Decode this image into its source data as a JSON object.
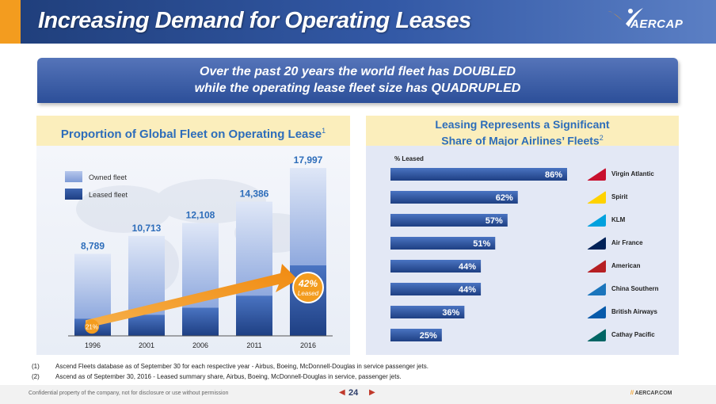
{
  "header": {
    "title": "Increasing Demand for Operating Leases",
    "logo_text": "AERCAP"
  },
  "banner": {
    "line1": "Over the past 20 years the world fleet has DOUBLED",
    "line2": "while the operating lease fleet size has QUADRUPLED"
  },
  "left_panel": {
    "title": "Proportion of Global Fleet on Operating Lease",
    "title_sup": "1",
    "legend": {
      "owned": "Owned fleet",
      "leased": "Leased fleet"
    },
    "callout_start": "21%",
    "callout_end_pct": "42%",
    "callout_end_word": "Leased"
  },
  "right_panel": {
    "title_line1": "Leasing Represents a Significant",
    "title_line2": "Share of Major Airlines’ Fleets",
    "title_sup": "2",
    "axis_label": "% Leased"
  },
  "chart_data": [
    {
      "type": "bar",
      "title": "Proportion of Global Fleet on Operating Lease",
      "categories": [
        "1996",
        "2001",
        "2006",
        "2011",
        "2016"
      ],
      "totals": [
        "8,789",
        "10,713",
        "12,108",
        "14,386",
        "17,997"
      ],
      "series": [
        {
          "name": "Owned fleet",
          "values": [
            6943,
            8463,
            9080,
            10072,
            10438
          ]
        },
        {
          "name": "Leased fleet",
          "values": [
            1846,
            2250,
            3028,
            4314,
            7559
          ]
        }
      ],
      "ylim": [
        0,
        18000
      ],
      "colors": {
        "owned": "#8fa9de",
        "leased": "#2f58a6",
        "total_label": "#2d6dba"
      }
    },
    {
      "type": "bar",
      "orientation": "horizontal",
      "title": "Leasing Represents a Significant Share of Major Airlines’ Fleets",
      "xlabel": "% Leased",
      "categories": [
        "Virgin Atlantic",
        "Spirit",
        "KLM",
        "Air France",
        "American",
        "China Southern",
        "British Airways",
        "Cathay Pacific"
      ],
      "values": [
        86,
        62,
        57,
        51,
        44,
        44,
        36,
        25
      ],
      "value_labels": [
        "86%",
        "62%",
        "57%",
        "51%",
        "44%",
        "44%",
        "36%",
        "25%"
      ],
      "xlim": [
        0,
        100
      ],
      "colors": {
        "bar": "#2f58a6",
        "label": "#ffffff"
      }
    }
  ],
  "airline_icons": [
    {
      "name": "virgin-atlantic",
      "color": "#c8102e"
    },
    {
      "name": "spirit",
      "color": "#ffd200"
    },
    {
      "name": "klm",
      "color": "#00a1de"
    },
    {
      "name": "air-france",
      "color": "#002157"
    },
    {
      "name": "american",
      "color": "#b61f23"
    },
    {
      "name": "china-southern",
      "color": "#1b75bc"
    },
    {
      "name": "british-airways",
      "color": "#075aaa"
    },
    {
      "name": "cathay-pacific",
      "color": "#006564"
    }
  ],
  "footnotes": [
    {
      "num": "(1)",
      "text": "Ascend Fleets database as of September 30 for each respective year - Airbus, Boeing, McDonnell-Douglas in service passenger jets."
    },
    {
      "num": "(2)",
      "text": "Ascend as of September 30, 2016 - Leased summary share, Airbus, Boeing, McDonnell-Douglas in service, passenger jets."
    }
  ],
  "footer": {
    "confidential": "Confidential property of the company, not for disclosure or use without permission",
    "page": "24",
    "url": "AERCAP.COM"
  }
}
